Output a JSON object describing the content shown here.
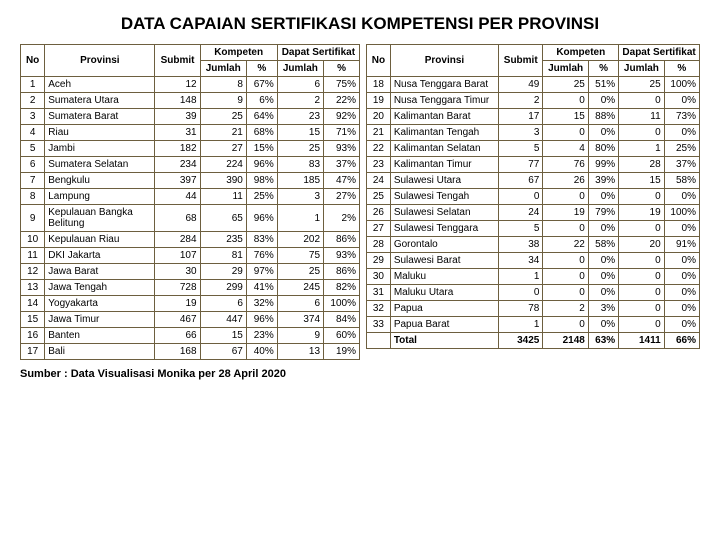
{
  "title": "DATA CAPAIAN SERTIFIKASI KOMPETENSI PER PROVINSI",
  "source": "Sumber : Data Visualisasi Monika per 28 April 2020",
  "headers": {
    "no": "No",
    "provinsi": "Provinsi",
    "submit": "Submit",
    "kompeten": "Kompeten",
    "dapat": "Dapat Sertifikat",
    "jumlah": "Jumlah",
    "persen": "%"
  },
  "left": [
    {
      "no": "1",
      "prov": "Aceh",
      "sub": "12",
      "kj": "8",
      "kp": "67%",
      "dj": "6",
      "dp": "75%"
    },
    {
      "no": "2",
      "prov": "Sumatera Utara",
      "sub": "148",
      "kj": "9",
      "kp": "6%",
      "dj": "2",
      "dp": "22%"
    },
    {
      "no": "3",
      "prov": "Sumatera Barat",
      "sub": "39",
      "kj": "25",
      "kp": "64%",
      "dj": "23",
      "dp": "92%"
    },
    {
      "no": "4",
      "prov": "Riau",
      "sub": "31",
      "kj": "21",
      "kp": "68%",
      "dj": "15",
      "dp": "71%"
    },
    {
      "no": "5",
      "prov": "Jambi",
      "sub": "182",
      "kj": "27",
      "kp": "15%",
      "dj": "25",
      "dp": "93%"
    },
    {
      "no": "6",
      "prov": "Sumatera Selatan",
      "sub": "234",
      "kj": "224",
      "kp": "96%",
      "dj": "83",
      "dp": "37%"
    },
    {
      "no": "7",
      "prov": "Bengkulu",
      "sub": "397",
      "kj": "390",
      "kp": "98%",
      "dj": "185",
      "dp": "47%"
    },
    {
      "no": "8",
      "prov": "Lampung",
      "sub": "44",
      "kj": "11",
      "kp": "25%",
      "dj": "3",
      "dp": "27%"
    },
    {
      "no": "9",
      "prov": "Kepulauan Bangka Belitung",
      "sub": "68",
      "kj": "65",
      "kp": "96%",
      "dj": "1",
      "dp": "2%"
    },
    {
      "no": "10",
      "prov": "Kepulauan Riau",
      "sub": "284",
      "kj": "235",
      "kp": "83%",
      "dj": "202",
      "dp": "86%"
    },
    {
      "no": "11",
      "prov": "DKI Jakarta",
      "sub": "107",
      "kj": "81",
      "kp": "76%",
      "dj": "75",
      "dp": "93%"
    },
    {
      "no": "12",
      "prov": "Jawa Barat",
      "sub": "30",
      "kj": "29",
      "kp": "97%",
      "dj": "25",
      "dp": "86%"
    },
    {
      "no": "13",
      "prov": "Jawa Tengah",
      "sub": "728",
      "kj": "299",
      "kp": "41%",
      "dj": "245",
      "dp": "82%"
    },
    {
      "no": "14",
      "prov": "Yogyakarta",
      "sub": "19",
      "kj": "6",
      "kp": "32%",
      "dj": "6",
      "dp": "100%"
    },
    {
      "no": "15",
      "prov": "Jawa Timur",
      "sub": "467",
      "kj": "447",
      "kp": "96%",
      "dj": "374",
      "dp": "84%"
    },
    {
      "no": "16",
      "prov": "Banten",
      "sub": "66",
      "kj": "15",
      "kp": "23%",
      "dj": "9",
      "dp": "60%"
    },
    {
      "no": "17",
      "prov": "Bali",
      "sub": "168",
      "kj": "67",
      "kp": "40%",
      "dj": "13",
      "dp": "19%"
    }
  ],
  "right": [
    {
      "no": "18",
      "prov": "Nusa Tenggara Barat",
      "sub": "49",
      "kj": "25",
      "kp": "51%",
      "dj": "25",
      "dp": "100%"
    },
    {
      "no": "19",
      "prov": "Nusa Tenggara Timur",
      "sub": "2",
      "kj": "0",
      "kp": "0%",
      "dj": "0",
      "dp": "0%"
    },
    {
      "no": "20",
      "prov": "Kalimantan Barat",
      "sub": "17",
      "kj": "15",
      "kp": "88%",
      "dj": "11",
      "dp": "73%"
    },
    {
      "no": "21",
      "prov": "Kalimantan Tengah",
      "sub": "3",
      "kj": "0",
      "kp": "0%",
      "dj": "0",
      "dp": "0%"
    },
    {
      "no": "22",
      "prov": "Kalimantan Selatan",
      "sub": "5",
      "kj": "4",
      "kp": "80%",
      "dj": "1",
      "dp": "25%"
    },
    {
      "no": "23",
      "prov": "Kalimantan Timur",
      "sub": "77",
      "kj": "76",
      "kp": "99%",
      "dj": "28",
      "dp": "37%"
    },
    {
      "no": "24",
      "prov": "Sulawesi Utara",
      "sub": "67",
      "kj": "26",
      "kp": "39%",
      "dj": "15",
      "dp": "58%"
    },
    {
      "no": "25",
      "prov": "Sulawesi Tengah",
      "sub": "0",
      "kj": "0",
      "kp": "0%",
      "dj": "0",
      "dp": "0%"
    },
    {
      "no": "26",
      "prov": "Sulawesi Selatan",
      "sub": "24",
      "kj": "19",
      "kp": "79%",
      "dj": "19",
      "dp": "100%"
    },
    {
      "no": "27",
      "prov": "Sulawesi Tenggara",
      "sub": "5",
      "kj": "0",
      "kp": "0%",
      "dj": "0",
      "dp": "0%"
    },
    {
      "no": "28",
      "prov": "Gorontalo",
      "sub": "38",
      "kj": "22",
      "kp": "58%",
      "dj": "20",
      "dp": "91%"
    },
    {
      "no": "29",
      "prov": "Sulawesi Barat",
      "sub": "34",
      "kj": "0",
      "kp": "0%",
      "dj": "0",
      "dp": "0%"
    },
    {
      "no": "30",
      "prov": "Maluku",
      "sub": "1",
      "kj": "0",
      "kp": "0%",
      "dj": "0",
      "dp": "0%"
    },
    {
      "no": "31",
      "prov": "Maluku Utara",
      "sub": "0",
      "kj": "0",
      "kp": "0%",
      "dj": "0",
      "dp": "0%"
    },
    {
      "no": "32",
      "prov": "Papua",
      "sub": "78",
      "kj": "2",
      "kp": "3%",
      "dj": "0",
      "dp": "0%"
    },
    {
      "no": "33",
      "prov": "Papua Barat",
      "sub": "1",
      "kj": "0",
      "kp": "0%",
      "dj": "0",
      "dp": "0%"
    }
  ],
  "total": {
    "label": "Total",
    "sub": "3425",
    "kj": "2148",
    "kp": "63%",
    "dj": "1411",
    "dp": "66%"
  },
  "colwidths": {
    "no": "22px",
    "prov": "100px",
    "sub": "40px",
    "kj": "40px",
    "kp": "28px",
    "dj": "40px",
    "dp": "30px"
  }
}
